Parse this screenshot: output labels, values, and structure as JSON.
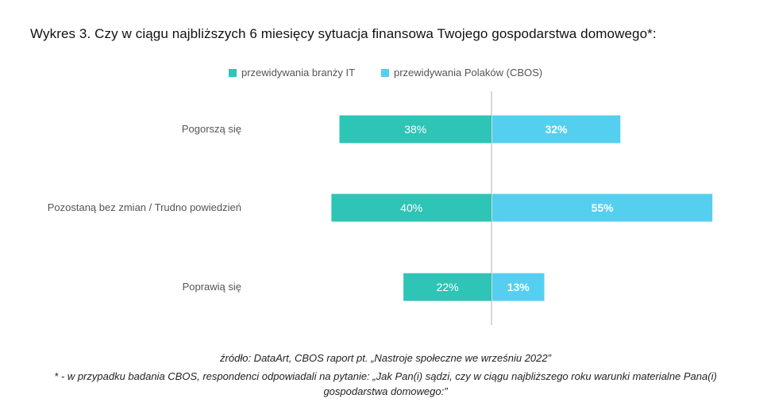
{
  "title": "Wykres 3. Czy w ciągu najbliższych 6 miesięcy sytuacja finansowa Twojego gospodarstwa domowego*:",
  "legend": [
    {
      "label": "przewidywania branży IT",
      "color": "#2ec4b6"
    },
    {
      "label": "przewidywania Polaków (CBOS)",
      "color": "#55cff0"
    }
  ],
  "chart_data": {
    "type": "bar",
    "orientation": "horizontal-diverging",
    "categories": [
      "Pogorszą się",
      "Pozostaną bez zmian / Trudno powiedzień",
      "Poprawią się"
    ],
    "series": [
      {
        "name": "przewidywania branży IT",
        "values": [
          38,
          40,
          22
        ],
        "labels": [
          "38%",
          "40%",
          "22%"
        ],
        "color": "#2ec4b6",
        "side": "left"
      },
      {
        "name": "przewidywania Polaków (CBOS)",
        "values": [
          32,
          55,
          13
        ],
        "labels": [
          "32%",
          "55%",
          "13%"
        ],
        "color": "#55cff0",
        "side": "right"
      }
    ],
    "unit": "%",
    "grid": false,
    "legend_position": "top"
  },
  "source_text": "źródło: DataArt, CBOS raport pt. „Nastroje społeczne we wrześniu 2022”",
  "note_line1": "* - w przypadku badania CBOS, respondenci odpowiadali na pytanie: „Jak Pan(i) sądzi, czy w ciągu najbliższego roku warunki materialne Pana(i)",
  "note_line2": "gospodarstwa domowego:”"
}
